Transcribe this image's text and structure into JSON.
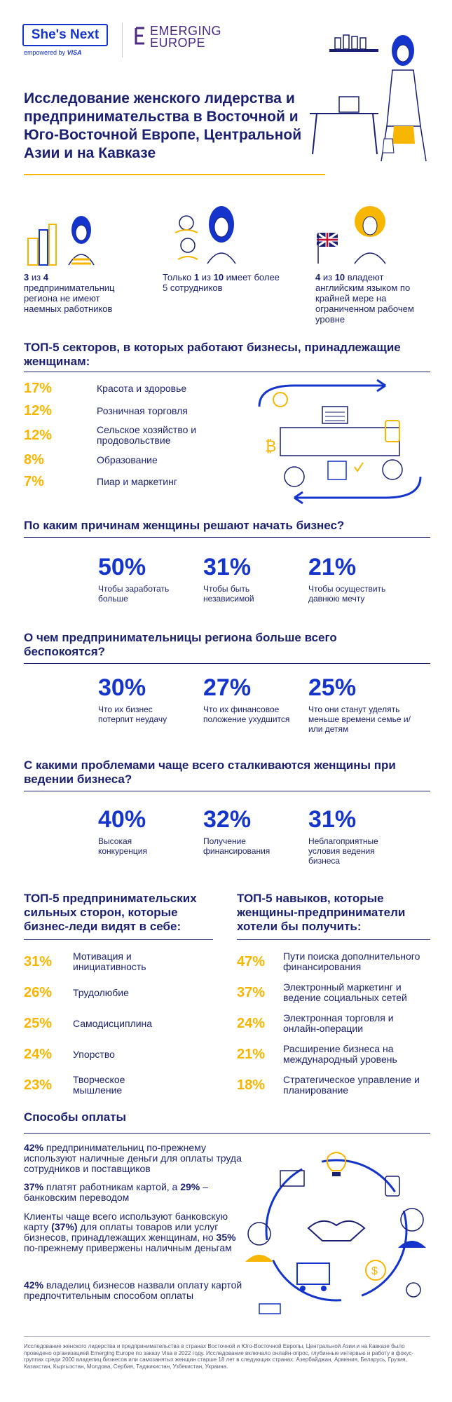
{
  "header": {
    "logo_primary": "She's Next",
    "logo_primary_sub_prefix": "empowered by",
    "logo_primary_sub_brand": "VISA",
    "logo_secondary_line1": "EMERGING",
    "logo_secondary_line2": "EUROPE"
  },
  "title": "Исследование женского лидерства и предпринимательства в Восточной и Юго-Восточной Европе, Центральной Азии и на Кавказе",
  "intro_stats": [
    {
      "strong1": "3",
      "mid1": " из ",
      "strong2": "4",
      "text": " предпринимательниц региона не имеют наемных работников"
    },
    {
      "prefix": "Только ",
      "strong1": "1",
      "mid1": " из ",
      "strong2": "10",
      "text": " имеет более 5 сотрудников"
    },
    {
      "strong1": "4",
      "mid1": " из ",
      "strong2": "10",
      "text": " владеют английским языком по крайней мере на ограниченном рабочем уровне"
    }
  ],
  "sectors": {
    "heading": "ТОП-5 секторов, в которых работают бизнесы, принадлежащие женщинам:",
    "items": [
      {
        "pct": "17%",
        "label": "Красота и здоровье"
      },
      {
        "pct": "12%",
        "label": "Розничная торговля"
      },
      {
        "pct": "12%",
        "label": "Сельское хозяйство и продовольствие"
      },
      {
        "pct": "8%",
        "label": "Образование"
      },
      {
        "pct": "7%",
        "label": "Пиар и маркетинг"
      }
    ]
  },
  "reasons": {
    "heading": "По каким причинам женщины решают начать бизнес?",
    "items": [
      {
        "pct": "50%",
        "label": "Чтобы заработать больше"
      },
      {
        "pct": "31%",
        "label": "Чтобы быть независимой"
      },
      {
        "pct": "21%",
        "label": "Чтобы осуществить давнюю мечту"
      }
    ]
  },
  "worries": {
    "heading": "О чем предпринимательницы региона больше всего беспокоятся?",
    "items": [
      {
        "pct": "30%",
        "label": "Что их бизнес потерпит неудачу"
      },
      {
        "pct": "27%",
        "label": "Что их финансовое положение ухудшится"
      },
      {
        "pct": "25%",
        "label": "Что они станут уделять меньше времени семье и/или детям"
      }
    ]
  },
  "problems": {
    "heading": "С какими проблемами чаще всего сталкиваются женщины при ведении бизнеса?",
    "items": [
      {
        "pct": "40%",
        "label": "Высокая конкуренция"
      },
      {
        "pct": "32%",
        "label": "Получение финансирования"
      },
      {
        "pct": "31%",
        "label": "Неблагоприятные условия ведения бизнеса"
      }
    ]
  },
  "strengths": {
    "heading": "ТОП-5 предпринимательских сильных сторон, которые бизнес-леди видят в себе:",
    "items": [
      {
        "pct": "31%",
        "label": "Мотивация и инициативность"
      },
      {
        "pct": "26%",
        "label": "Трудолюбие"
      },
      {
        "pct": "25%",
        "label": "Самодисциплина"
      },
      {
        "pct": "24%",
        "label": "Упорство"
      },
      {
        "pct": "23%",
        "label": "Творческое мышление"
      }
    ]
  },
  "skills": {
    "heading": "ТОП-5 навыков, которые женщины-предприниматели хотели бы получить:",
    "items": [
      {
        "pct": "47%",
        "label": "Пути поиска дополнительного финансирования"
      },
      {
        "pct": "37%",
        "label": "Электронный маркетинг и ведение социальных сетей"
      },
      {
        "pct": "24%",
        "label": "Электронная торговля и онлайн-операции"
      },
      {
        "pct": "21%",
        "label": "Расширение бизнеса на международный уровень"
      },
      {
        "pct": "18%",
        "label": "Стратегическое управление и планирование"
      }
    ]
  },
  "payments": {
    "heading": "Способы оплаты",
    "p1_strong": "42%",
    "p1_text": " предпринимательниц по-прежнему используют наличные деньги для оплаты труда сотрудников и поставщиков",
    "p2_strong1": "37%",
    "p2_text1": " платят работникам картой, а ",
    "p2_strong2": "29%",
    "p2_text2": " – банковским переводом",
    "p3_text1": "Клиенты чаще всего используют банковскую карту ",
    "p3_strong1": "(37%)",
    "p3_text2": " для оплаты товаров или услуг бизнесов, принадлежащих женщинам, но ",
    "p3_strong2": "35%",
    "p3_text3": " по-прежнему привержены наличным деньгам",
    "p4_strong": "42%",
    "p4_text": " владелиц бизнесов назвали оплату картой предпочтительным способом оплаты"
  },
  "footnote": "Исследование женского лидерства и предпринимательства в странах Восточной и Юго-Восточной Европы, Центральной Азии и на Кавказе было проведено организацией Emerging Europe по заказу Visa в 2022 году. Исследование включало онлайн-опрос, глубинные интервью и работу в фокус-группах среди 2000 владелиц бизнесов или самозанятых женщин старше 18 лет в следующих странах: Азербайджан, Армения, Беларусь, Грузия, Казахстан, Кыргызстан, Молдова, Сербия, Таджикистан, Узбекистан, Украина.",
  "colors": {
    "navy": "#1a1f71",
    "blue": "#1434cb",
    "yellow": "#f7b600",
    "purple": "#4b2a85"
  },
  "icons": [
    "woman-at-desk-illustration",
    "city-woman-illustration",
    "team-illustration",
    "uk-flag-woman-illustration",
    "business-cycle-illustration",
    "payments-cycle-illustration"
  ]
}
